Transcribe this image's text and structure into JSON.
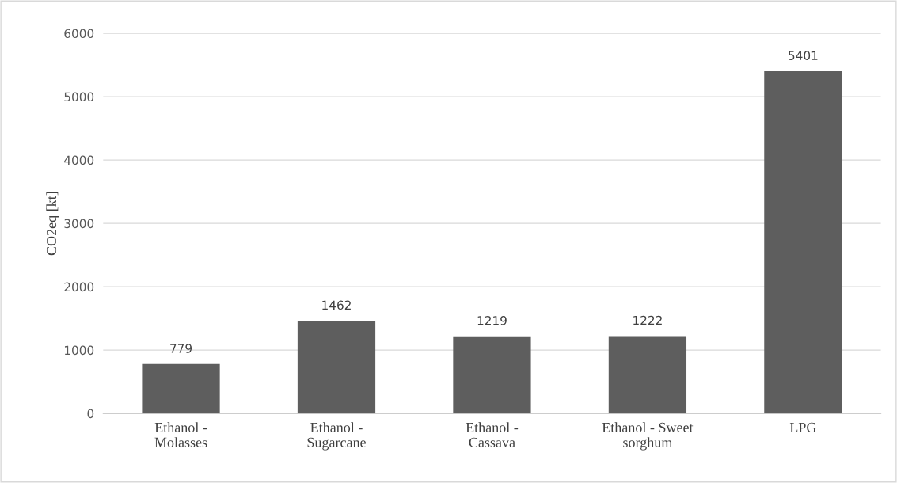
{
  "chart_data": {
    "type": "bar",
    "ylabel": "CO2eq [kt]",
    "categories": [
      "Ethanol -\nMolasses",
      "Ethanol -\nSugarcane",
      "Ethanol -\nCassava",
      "Ethanol - Sweet\nsorghum",
      "LPG"
    ],
    "values": [
      779,
      1462,
      1219,
      1222,
      5401
    ],
    "color": "#5e5e5e",
    "ylim": [
      0,
      6000
    ],
    "yticks": [
      0,
      1000,
      2000,
      3000,
      4000,
      5000,
      6000
    ],
    "grid": "y",
    "data_labels": true,
    "legend": false
  }
}
